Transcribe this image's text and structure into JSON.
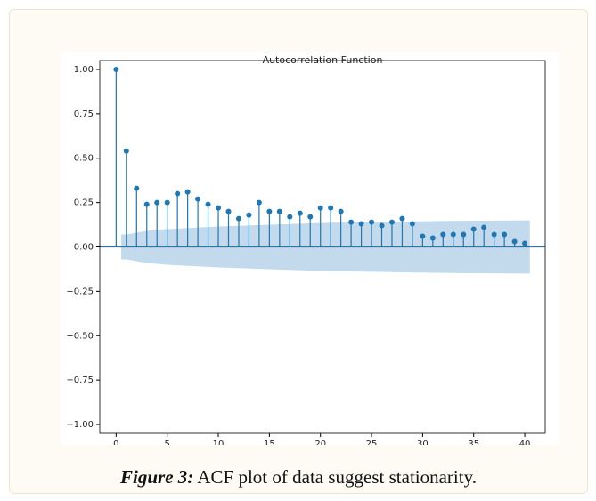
{
  "chart_data": {
    "type": "stem",
    "title": "Autocorrelation Function",
    "x": [
      0,
      1,
      2,
      3,
      4,
      5,
      6,
      7,
      8,
      9,
      10,
      11,
      12,
      13,
      14,
      15,
      16,
      17,
      18,
      19,
      20,
      21,
      22,
      23,
      24,
      25,
      26,
      27,
      28,
      29,
      30,
      31,
      32,
      33,
      34,
      35,
      36,
      37,
      38,
      39,
      40
    ],
    "values": [
      1.0,
      0.54,
      0.33,
      0.24,
      0.25,
      0.25,
      0.3,
      0.31,
      0.27,
      0.24,
      0.22,
      0.2,
      0.16,
      0.18,
      0.25,
      0.2,
      0.2,
      0.17,
      0.19,
      0.17,
      0.22,
      0.22,
      0.2,
      0.14,
      0.13,
      0.14,
      0.12,
      0.14,
      0.16,
      0.13,
      0.06,
      0.05,
      0.07,
      0.07,
      0.07,
      0.1,
      0.11,
      0.07,
      0.07,
      0.03,
      0.02
    ],
    "color": "#1f77b4",
    "band": {
      "x": [
        0.5,
        1,
        3,
        5,
        10,
        15,
        20,
        25,
        30,
        35,
        40,
        40.5
      ],
      "upper": [
        0.07,
        0.07,
        0.09,
        0.1,
        0.115,
        0.125,
        0.135,
        0.14,
        0.145,
        0.148,
        0.15,
        0.15
      ],
      "lower": [
        -0.07,
        -0.07,
        -0.09,
        -0.1,
        -0.115,
        -0.125,
        -0.135,
        -0.14,
        -0.145,
        -0.148,
        -0.15,
        -0.15
      ],
      "color": "#aecde6"
    },
    "xlim": [
      -1.6,
      42
    ],
    "xticks": [
      0,
      5,
      10,
      15,
      20,
      25,
      30,
      35,
      40
    ],
    "ylim": [
      -1.05,
      1.05
    ],
    "yticks": [
      {
        "value": -1,
        "label": "−1.00"
      },
      {
        "value": -0.75,
        "label": "−0.75"
      },
      {
        "value": -0.5,
        "label": "−0.50"
      },
      {
        "value": -0.25,
        "label": "−0.25"
      },
      {
        "value": 0,
        "label": "0.00"
      },
      {
        "value": 0.25,
        "label": "0.25"
      },
      {
        "value": 0.5,
        "label": "0.50"
      },
      {
        "value": 0.75,
        "label": "0.75"
      },
      {
        "value": 1,
        "label": "1.00"
      }
    ]
  },
  "caption": {
    "label": "Figure 3:",
    "text": "ACF plot of data suggest stationarity."
  }
}
